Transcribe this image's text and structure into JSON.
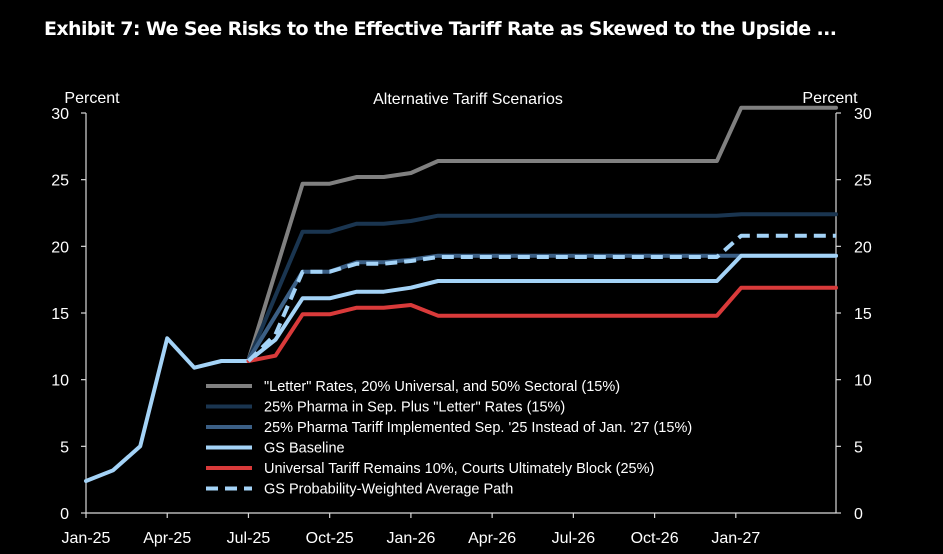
{
  "title": "Exhibit 7: We See Risks to the Effective Tariff Rate as Skewed to the Upside ...",
  "chart_data": {
    "type": "line",
    "subtitle": "Alternative Tariff Scenarios",
    "ylabel_left": "Percent",
    "ylabel_right": "Percent",
    "ylim": [
      0,
      30
    ],
    "yticks": [
      0,
      5,
      10,
      15,
      20,
      25,
      30
    ],
    "xlim": [
      0,
      27.7
    ],
    "x_tick_positions": [
      0,
      3,
      6,
      9,
      12,
      15,
      18,
      21,
      24
    ],
    "x_tick_labels": [
      "Jan-25",
      "Apr-25",
      "Jul-25",
      "Oct-25",
      "Jan-26",
      "Apr-26",
      "Jul-26",
      "Oct-26",
      "Jan-27"
    ],
    "legend_position": "bottom-center",
    "grid": false,
    "series": [
      {
        "name": "\"Letter\" Rates, 20% Universal, and 50% Sectoral (15%)",
        "color": "#808080",
        "dashed": false,
        "x": [
          6,
          8,
          9,
          10,
          11,
          12,
          13,
          23.3,
          24.2,
          27.7
        ],
        "y": [
          11.5,
          24.7,
          24.7,
          25.2,
          25.2,
          25.5,
          26.4,
          26.4,
          30.4,
          30.4
        ]
      },
      {
        "name": "25% Pharma in Sep. Plus \"Letter\" Rates (15%)",
        "color": "#1a3550",
        "dashed": false,
        "x": [
          6,
          8,
          9,
          10,
          11,
          12,
          13,
          23.3,
          24.2,
          27.7
        ],
        "y": [
          11.5,
          21.1,
          21.1,
          21.7,
          21.7,
          21.9,
          22.3,
          22.3,
          22.4,
          22.4
        ]
      },
      {
        "name": "25% Pharma Tariff Implemented Sep. '25 Instead of Jan. '27 (15%)",
        "color": "#3b5f85",
        "dashed": false,
        "x": [
          6,
          8,
          9,
          10,
          11,
          12,
          13,
          23.3,
          24.2,
          27.7
        ],
        "y": [
          11.5,
          18.1,
          18.1,
          18.8,
          18.8,
          19.0,
          19.3,
          19.3,
          19.3,
          19.3
        ]
      },
      {
        "name": "GS Baseline",
        "color": "#a4d3f7",
        "dashed": false,
        "x": [
          0,
          1,
          2,
          3,
          4,
          5,
          6,
          7,
          8,
          9,
          10,
          11,
          12,
          13,
          23.3,
          24.2,
          27.7
        ],
        "y": [
          2.4,
          3.2,
          5.0,
          13.1,
          10.9,
          11.4,
          11.4,
          13.0,
          16.1,
          16.1,
          16.6,
          16.6,
          16.9,
          17.4,
          17.4,
          19.3,
          19.3
        ]
      },
      {
        "name": "Universal Tariff Remains 10%, Courts Ultimately Block (25%)",
        "color": "#d93a3a",
        "dashed": false,
        "x": [
          6,
          7,
          8,
          9,
          10,
          11,
          12,
          13,
          23.3,
          24.2,
          27.7
        ],
        "y": [
          11.4,
          11.8,
          14.9,
          14.9,
          15.4,
          15.4,
          15.6,
          14.8,
          14.8,
          16.9,
          16.9
        ]
      },
      {
        "name": "GS Probability-Weighted Average Path",
        "color": "#a4d3f7",
        "dashed": true,
        "x": [
          6,
          7,
          8,
          9,
          10,
          11,
          12,
          13,
          23.3,
          24.2,
          27.7
        ],
        "y": [
          11.4,
          13.4,
          18.1,
          18.1,
          18.7,
          18.7,
          18.9,
          19.2,
          19.2,
          20.8,
          20.8
        ]
      }
    ]
  }
}
